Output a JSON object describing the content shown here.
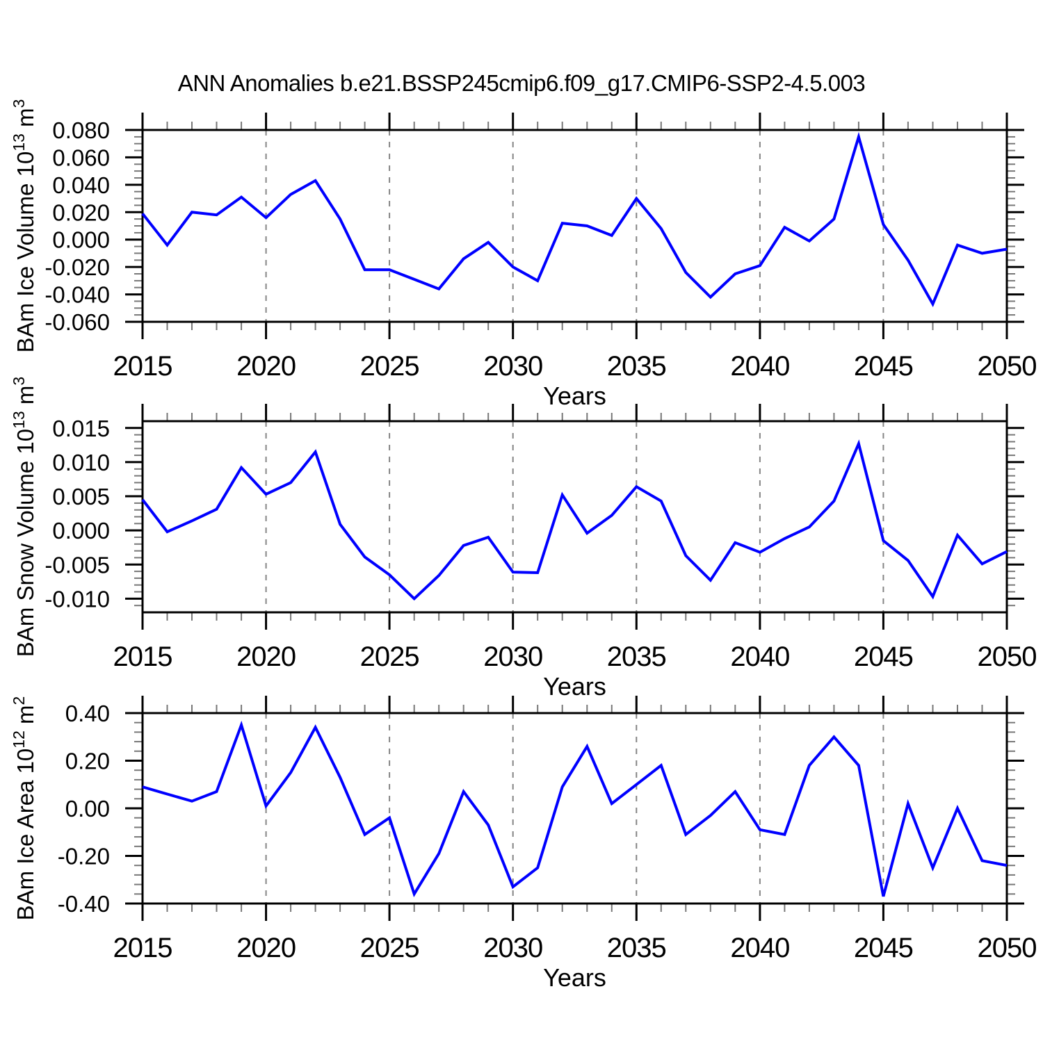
{
  "title": "ANN Anomalies b.e21.BSSP245cmip6.f09_g17.CMIP6-SSP2-4.5.003",
  "figure": {
    "background": "#ffffff",
    "line_color": "#0000ff",
    "axis_color": "#000000",
    "minor_tick_color": "#777777",
    "grid_color": "#848484"
  },
  "x": [
    2015,
    2016,
    2017,
    2018,
    2019,
    2020,
    2021,
    2022,
    2023,
    2024,
    2025,
    2026,
    2027,
    2028,
    2029,
    2030,
    2031,
    2032,
    2033,
    2034,
    2035,
    2036,
    2037,
    2038,
    2039,
    2040,
    2041,
    2042,
    2043,
    2044,
    2045,
    2046,
    2047,
    2048,
    2049,
    2050
  ],
  "x_tick_labels": [
    "2015",
    "2020",
    "2025",
    "2030",
    "2035",
    "2040",
    "2045",
    "2050"
  ],
  "grid_years": [
    2020,
    2025,
    2030,
    2035,
    2040,
    2045
  ],
  "chart_data": [
    {
      "type": "line",
      "id": "ice-volume",
      "ylabel": {
        "text": "BAm Ice Volume",
        "scale": "10",
        "scale_exp": "13",
        "unit": "m",
        "unit_exp": "3"
      },
      "xlabel": "Years",
      "xlim": [
        2015,
        2050
      ],
      "ylim": [
        -0.06,
        0.08
      ],
      "ytick_start": -0.06,
      "ytick_step": 0.02,
      "yminor_step": 0.005,
      "ydecimals": 3,
      "ytick_labels": [
        "0.080",
        "0.060",
        "0.040",
        "0.020",
        "0.000",
        "-0.020",
        "-0.040",
        "-0.060"
      ],
      "grid": "vertical-dashed",
      "values": [
        0.019,
        -0.004,
        0.02,
        0.018,
        0.031,
        0.016,
        0.033,
        0.043,
        0.015,
        -0.022,
        -0.022,
        -0.029,
        -0.036,
        -0.014,
        -0.002,
        -0.02,
        -0.03,
        0.012,
        0.01,
        0.003,
        0.03,
        0.008,
        -0.024,
        -0.042,
        -0.025,
        -0.019,
        0.009,
        -0.001,
        0.015,
        0.075,
        0.011,
        -0.015,
        -0.047,
        -0.004,
        -0.01,
        -0.007
      ]
    },
    {
      "type": "line",
      "id": "snow-volume",
      "ylabel": {
        "text": "BAm Snow Volume",
        "scale": "10",
        "scale_exp": "13",
        "unit": "m",
        "unit_exp": "3"
      },
      "xlabel": "Years",
      "xlim": [
        2015,
        2050
      ],
      "ylim": [
        -0.012,
        0.016
      ],
      "ytick_start": -0.01,
      "ytick_step": 0.005,
      "yminor_step": 0.001,
      "ydecimals": 3,
      "ytick_labels": [
        "0.015",
        "0.010",
        "0.005",
        "0.000",
        "-0.005",
        "-0.010"
      ],
      "grid": "vertical-dashed",
      "values": [
        0.0045,
        -0.0002,
        0.0014,
        0.0031,
        0.0092,
        0.0053,
        0.007,
        0.0115,
        0.0009,
        -0.0039,
        -0.0065,
        -0.01,
        -0.0066,
        -0.0022,
        -0.001,
        -0.0061,
        -0.0062,
        0.0052,
        -0.0004,
        0.0022,
        0.0064,
        0.0043,
        -0.0037,
        -0.0073,
        -0.0018,
        -0.0032,
        -0.0012,
        0.0005,
        0.0043,
        0.0127,
        -0.0015,
        -0.0044,
        -0.0097,
        -0.0007,
        -0.0049,
        -0.0031
      ]
    },
    {
      "type": "line",
      "id": "ice-area",
      "ylabel": {
        "text": "BAm Ice Area",
        "scale": "10",
        "scale_exp": "12",
        "unit": "m",
        "unit_exp": "2"
      },
      "xlabel": "Years",
      "xlim": [
        2015,
        2050
      ],
      "ylim": [
        -0.4,
        0.4
      ],
      "ytick_start": -0.4,
      "ytick_step": 0.2,
      "yminor_step": 0.04,
      "ydecimals": 2,
      "ytick_labels": [
        "0.40",
        "0.20",
        "0.00",
        "-0.20",
        "-0.40"
      ],
      "grid": "vertical-dashed",
      "values": [
        0.09,
        0.06,
        0.03,
        0.07,
        0.35,
        0.01,
        0.15,
        0.34,
        0.13,
        -0.11,
        -0.04,
        -0.36,
        -0.19,
        0.07,
        -0.07,
        -0.33,
        -0.25,
        0.09,
        0.26,
        0.02,
        0.1,
        0.18,
        -0.11,
        -0.03,
        0.07,
        -0.09,
        -0.11,
        0.18,
        0.3,
        0.18,
        -0.37,
        0.02,
        -0.25,
        0.0,
        -0.22,
        -0.24
      ]
    }
  ]
}
